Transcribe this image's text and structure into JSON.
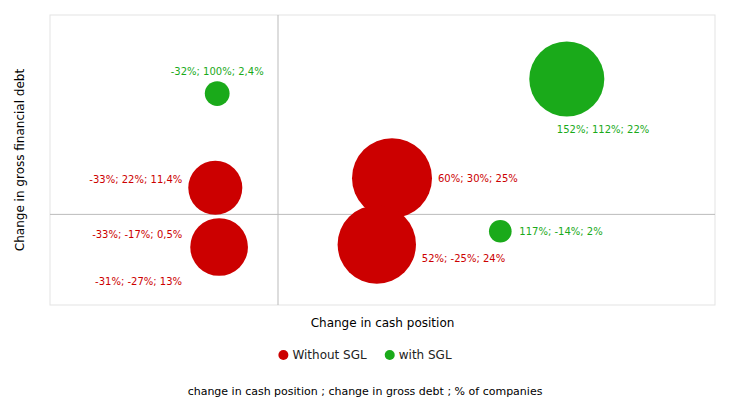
{
  "chart_data": {
    "type": "scatter",
    "xlabel": "Change in cash position",
    "ylabel": "Change in gross financial debt",
    "subtitle": "change in cash position ; change in gross debt ; % of companies",
    "xlim": [
      -120,
      230
    ],
    "ylim": [
      -75,
      165
    ],
    "tick_labels": false,
    "grid": false,
    "legend": "bottom",
    "series": [
      {
        "name": "Without SGL",
        "color": "#cc0000",
        "x": [
          -33,
          -33,
          -31,
          60,
          52
        ],
        "values": [
          22,
          -17,
          -27,
          30,
          -25
        ],
        "sizes": [
          11.4,
          0.5,
          13,
          25,
          24
        ],
        "labels": [
          "-33%; 22%; 11,4%",
          "-33%; -17%; 0,5%",
          "-31%; -27%; 13%",
          "60%; 30%; 25%",
          "52%; -25%; 24%"
        ]
      },
      {
        "name": "with SGL",
        "color": "#1aaa1a",
        "x": [
          -32,
          152,
          117
        ],
        "values": [
          100,
          112,
          -14
        ],
        "sizes": [
          2.4,
          22,
          2
        ],
        "labels": [
          "-32%; 100%; 2,4%",
          "152%; 112%; 22%",
          "117%; -14%; 2%"
        ]
      }
    ]
  }
}
